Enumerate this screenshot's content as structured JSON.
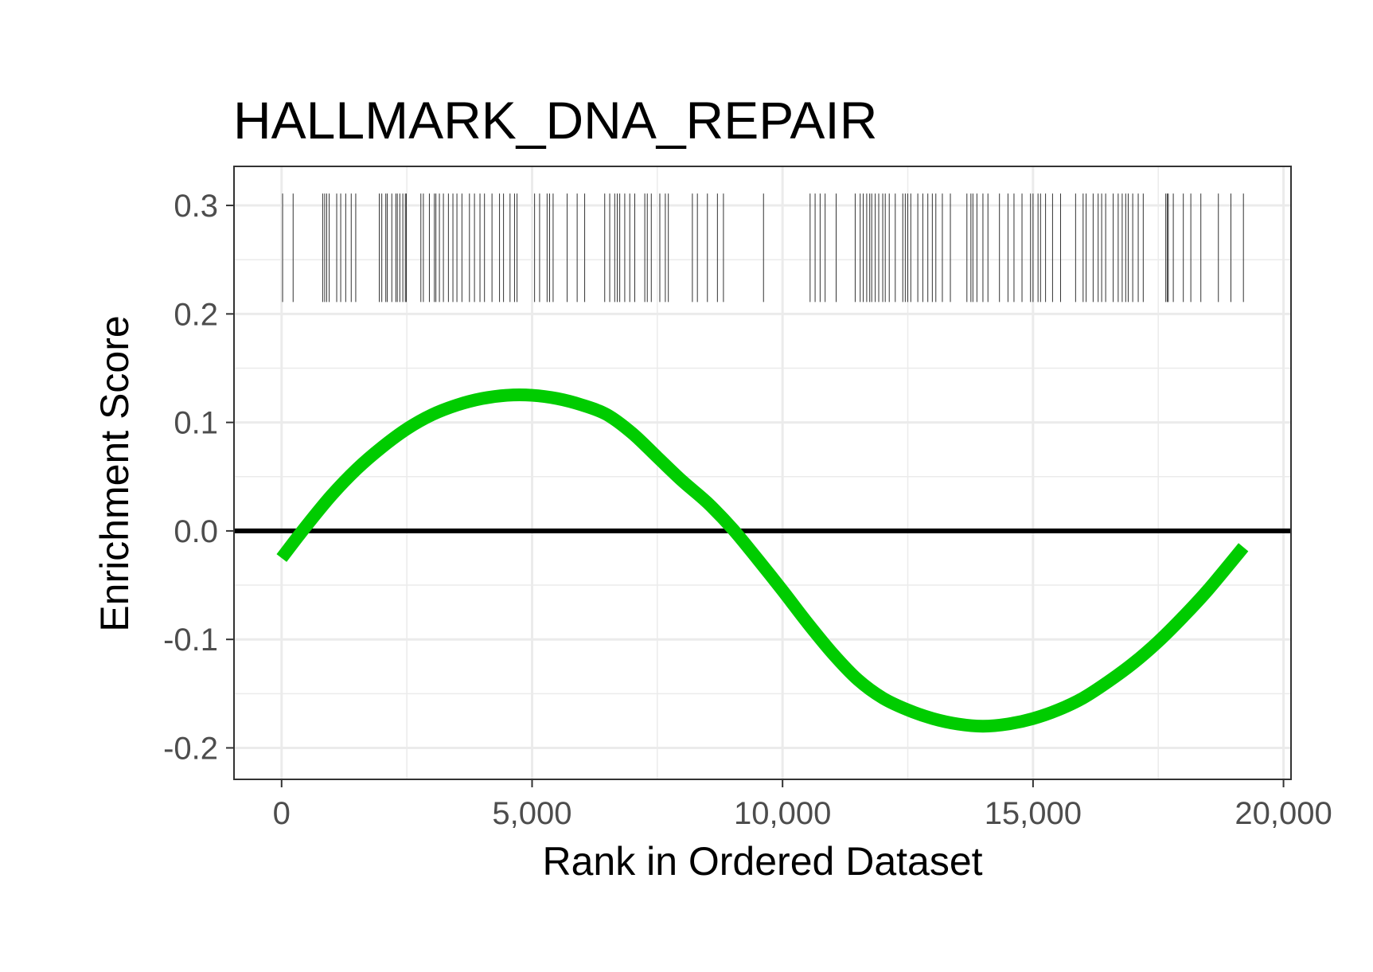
{
  "chart_data": {
    "type": "line",
    "title": "HALLMARK_DNA_REPAIR",
    "xlabel": "Rank in Ordered Dataset",
    "ylabel": "Enrichment Score",
    "xlim": [
      -950,
      20150
    ],
    "ylim": [
      -0.229,
      0.336
    ],
    "x_ticks": [
      0,
      5000,
      10000,
      15000,
      20000
    ],
    "x_tick_labels": [
      "0",
      "5,000",
      "10,000",
      "15,000",
      "20,000"
    ],
    "y_ticks": [
      -0.2,
      -0.1,
      0.0,
      0.1,
      0.2,
      0.3
    ],
    "y_tick_labels": [
      "-0.2",
      "-0.1",
      "0.0",
      "0.1",
      "0.2",
      "0.3"
    ],
    "grid": true,
    "legend": "none",
    "reference_line": {
      "y": 0,
      "color": "#000000"
    },
    "series": [
      {
        "color": "#00cc00",
        "x": [
          0,
          500,
          1000,
          1500,
          2000,
          2500,
          3000,
          3500,
          4000,
          4500,
          5000,
          5500,
          6000,
          6500,
          7000,
          7500,
          8000,
          8500,
          9000,
          9500,
          10000,
          10500,
          11000,
          11500,
          12000,
          12500,
          13000,
          13500,
          14000,
          14500,
          15000,
          15500,
          16000,
          16500,
          17000,
          17500,
          18000,
          18500,
          19200
        ],
        "y": [
          -0.025,
          0.005,
          0.033,
          0.057,
          0.077,
          0.094,
          0.107,
          0.116,
          0.122,
          0.125,
          0.125,
          0.122,
          0.116,
          0.107,
          0.09,
          0.068,
          0.046,
          0.026,
          0.002,
          -0.026,
          -0.055,
          -0.085,
          -0.113,
          -0.137,
          -0.154,
          -0.165,
          -0.173,
          -0.178,
          -0.18,
          -0.178,
          -0.173,
          -0.165,
          -0.154,
          -0.139,
          -0.122,
          -0.102,
          -0.079,
          -0.054,
          -0.015
        ]
      }
    ],
    "gene_ranks": [
      20,
      230,
      820,
      860,
      900,
      950,
      1100,
      1180,
      1280,
      1390,
      1480,
      1950,
      2000,
      2080,
      2110,
      2200,
      2280,
      2310,
      2360,
      2420,
      2470,
      2490,
      2780,
      2830,
      2950,
      3050,
      3080,
      3150,
      3230,
      3330,
      3420,
      3500,
      3600,
      3750,
      3850,
      3960,
      4050,
      4200,
      4350,
      4430,
      4560,
      4650,
      4700,
      5050,
      5150,
      5300,
      5350,
      5420,
      5700,
      5900,
      6050,
      6450,
      6550,
      6650,
      6700,
      6750,
      6850,
      6950,
      7050,
      7250,
      7300,
      7380,
      7550,
      7660,
      7720,
      8200,
      8300,
      8500,
      8700,
      8820,
      9620,
      10550,
      10650,
      10750,
      10850,
      11070,
      11450,
      11550,
      11610,
      11680,
      11740,
      11780,
      11850,
      11920,
      12000,
      12050,
      12130,
      12250,
      12400,
      12450,
      12500,
      12560,
      12700,
      12800,
      12900,
      12990,
      13060,
      13190,
      13350,
      13680,
      13760,
      13800,
      13880,
      14000,
      14100,
      14330,
      14500,
      14620,
      14780,
      14950,
      15000,
      15100,
      15150,
      15250,
      15390,
      15550,
      15850,
      16000,
      16060,
      16200,
      16300,
      16370,
      16450,
      16600,
      16700,
      16780,
      16850,
      16900,
      16990,
      17100,
      17200,
      17650,
      17680,
      17700,
      17800,
      18000,
      18150,
      18350,
      18700,
      18950,
      19200
    ]
  }
}
